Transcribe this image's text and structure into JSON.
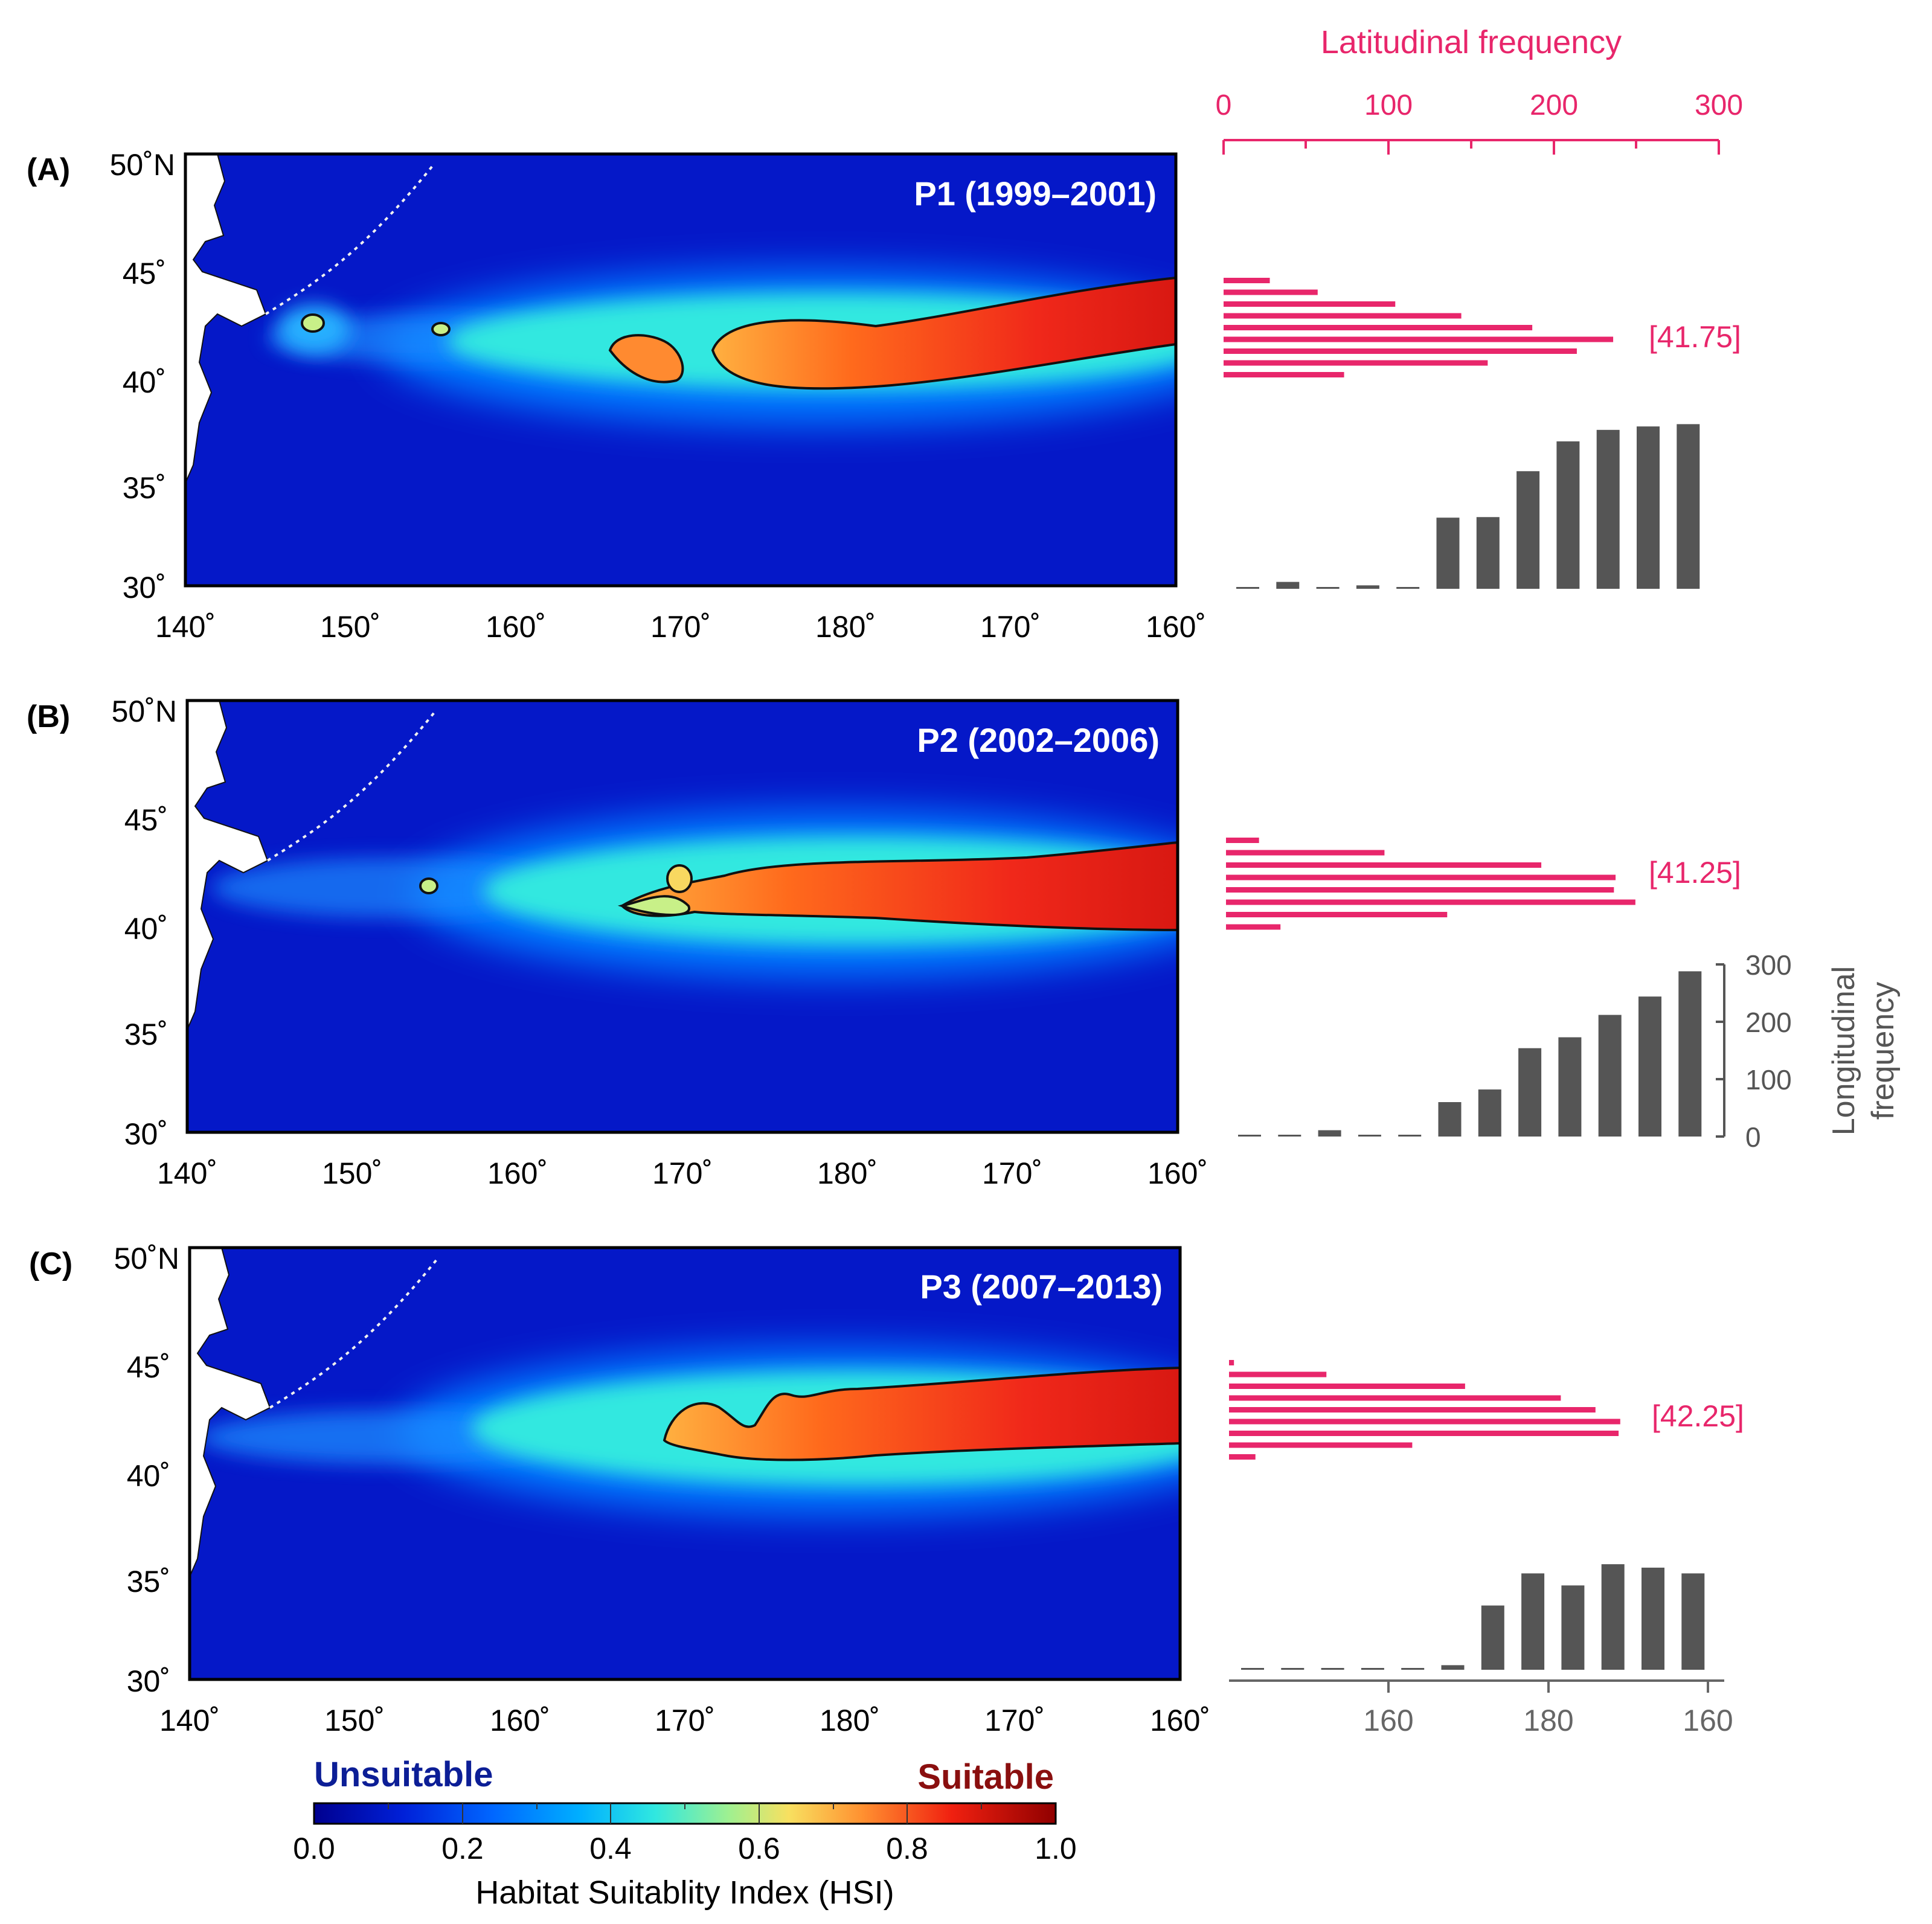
{
  "figure": {
    "lat_freq_title": "Latitudinal frequency",
    "lon_freq_title": [
      "Longitudinal",
      "frequency"
    ],
    "colorbar": {
      "left_label": "Unsuitable",
      "right_label": "Suitable",
      "title": "Habitat Suitablity Index (HSI)",
      "ticks": [
        "0.0",
        "0.2",
        "0.4",
        "0.6",
        "0.8",
        "1.0"
      ]
    },
    "colors": {
      "lat_bars": "#e8266b",
      "lon_bars": "#555555",
      "unsuitable": "#0c1e96",
      "suitable": "#8a0f0f"
    }
  },
  "chart_data": [
    {
      "type": "heatmap",
      "panel": "(A)",
      "title": "P1 (1999–2001)",
      "lat_ticks": [
        "50˚N",
        "45˚",
        "40˚",
        "35˚",
        "30˚"
      ],
      "lon_ticks": [
        "140˚",
        "150˚",
        "160˚",
        "170˚",
        "180˚",
        "170˚",
        "160˚"
      ],
      "lat_range": [
        30,
        50
      ],
      "color_scale": [
        0.0,
        1.0
      ]
    },
    {
      "type": "bar",
      "panel": "(A) latitudinal",
      "orientation": "horizontal",
      "x_ticks": [
        "0",
        "100",
        "200",
        "300"
      ],
      "xlim": [
        0,
        300
      ],
      "values": [
        28,
        57,
        104,
        144,
        187,
        236,
        214,
        160,
        73
      ],
      "peak_label": "[41.75]"
    },
    {
      "type": "bar",
      "panel": "(A) longitudinal",
      "ylim": [
        0,
        300
      ],
      "values": [
        1,
        12,
        3,
        6,
        1,
        124,
        125,
        205,
        257,
        277,
        283,
        287
      ]
    },
    {
      "type": "heatmap",
      "panel": "(B)",
      "title": "P2 (2002–2006)",
      "lat_ticks": [
        "50˚N",
        "45˚",
        "40˚",
        "35˚",
        "30˚"
      ],
      "lon_ticks": [
        "140˚",
        "150˚",
        "160˚",
        "170˚",
        "180˚",
        "170˚",
        "160˚"
      ],
      "lat_range": [
        30,
        50
      ],
      "color_scale": [
        0.0,
        1.0
      ]
    },
    {
      "type": "bar",
      "panel": "(B) latitudinal",
      "orientation": "horizontal",
      "x_ticks": [
        "0",
        "100",
        "200",
        "300"
      ],
      "xlim": [
        0,
        300
      ],
      "values": [
        20,
        96,
        191,
        236,
        235,
        248,
        134,
        33
      ],
      "peak_label": "[41.25]"
    },
    {
      "type": "bar",
      "panel": "(B) longitudinal",
      "y_ticks": [
        "0",
        "100",
        "200",
        "300"
      ],
      "ylim": [
        0,
        300
      ],
      "values": [
        1,
        1,
        11,
        1,
        1,
        60,
        82,
        154,
        173,
        212,
        244,
        288
      ]
    },
    {
      "type": "heatmap",
      "panel": "(C)",
      "title": "P3 (2007–2013)",
      "lat_ticks": [
        "50˚N",
        "45˚",
        "40˚",
        "35˚",
        "30˚"
      ],
      "lon_ticks": [
        "140˚",
        "150˚",
        "160˚",
        "170˚",
        "180˚",
        "170˚",
        "160˚"
      ],
      "lat_range": [
        30,
        50
      ],
      "color_scale": [
        0.0,
        1.0
      ]
    },
    {
      "type": "bar",
      "panel": "(C) latitudinal",
      "orientation": "horizontal",
      "x_ticks": [
        "0",
        "100",
        "200",
        "300"
      ],
      "xlim": [
        0,
        300
      ],
      "values": [
        3,
        59,
        143,
        201,
        222,
        237,
        236,
        111,
        16
      ],
      "peak_label": "[42.25]"
    },
    {
      "type": "bar",
      "panel": "(C) longitudinal",
      "x_ticks": [
        "160",
        "180",
        "160"
      ],
      "ylim": [
        0,
        300
      ],
      "values": [
        1,
        1,
        1,
        1,
        1,
        8,
        112,
        168,
        147,
        184,
        178,
        168
      ]
    }
  ]
}
